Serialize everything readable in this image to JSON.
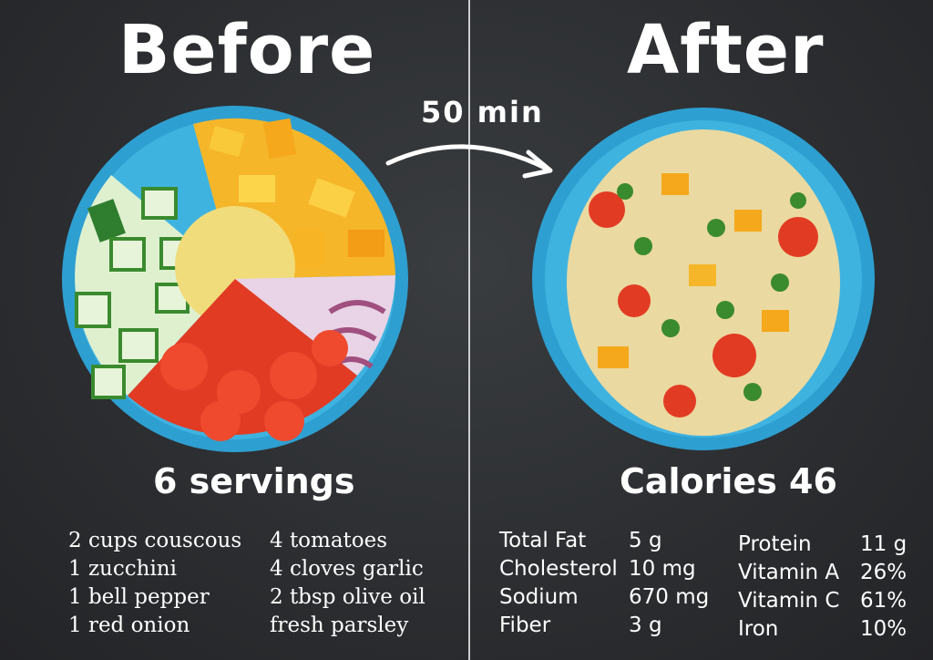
{
  "before_title": "Before",
  "after_title": "After",
  "time_label": "50 min",
  "servings_label": "6 servings",
  "calories_label": "Calories 46",
  "ingredients": {
    "col1": [
      "2 cups couscous",
      "1 zucchini",
      "1 bell pepper",
      "1 red onion"
    ],
    "col2": [
      "4 tomatoes",
      "4 cloves garlic",
      "2 tbsp olive oil",
      "fresh parsley"
    ]
  },
  "nutrition": {
    "left": [
      {
        "name": "Total Fat",
        "value": "5 g"
      },
      {
        "name": "Cholesterol",
        "value": "10 mg"
      },
      {
        "name": "Sodium",
        "value": "670 mg"
      },
      {
        "name": "Fiber",
        "value": "3 g"
      }
    ],
    "right": [
      {
        "name": "Protein",
        "value": "11 g"
      },
      {
        "name": "Vitamin A",
        "value": "26%"
      },
      {
        "name": "Vitamin C",
        "value": "61%"
      },
      {
        "name": "Iron",
        "value": "10%"
      }
    ]
  },
  "colors": {
    "plate": "#3aa9d8",
    "couscous": "#f0dc7a",
    "pepper": "#f5a81c",
    "tomato": "#e23b24",
    "zucchini": "#d8ecc4",
    "onion": "#c9a2c4"
  }
}
